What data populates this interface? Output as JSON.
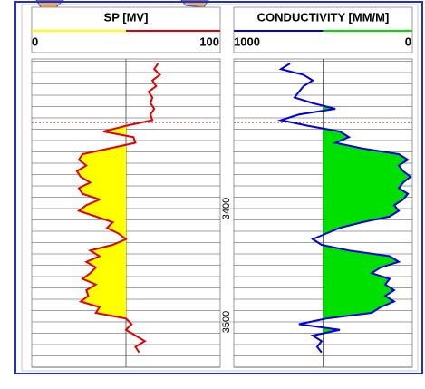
{
  "chart_data": {
    "type": "well_log",
    "depth": [
      3272,
      3277,
      3282,
      3287,
      3292,
      3297,
      3302,
      3307,
      3312,
      3317,
      3322,
      3327,
      3332,
      3337,
      3342,
      3347,
      3352,
      3357,
      3362,
      3367,
      3372,
      3377,
      3382,
      3387,
      3392,
      3397,
      3402,
      3407,
      3412,
      3417,
      3422,
      3427,
      3432,
      3437,
      3442,
      3447,
      3452,
      3457,
      3462,
      3467,
      3472,
      3477,
      3482,
      3487,
      3492,
      3497,
      3502,
      3507,
      3512,
      3517,
      3522,
      3527
    ],
    "ylim": [
      3268,
      3540
    ],
    "yticks": [
      3400,
      3500
    ],
    "minor_grid_interval": 10,
    "horizon_depth": 3324,
    "tracks": [
      {
        "title": "SP [MV]",
        "xlim": [
          0,
          100
        ],
        "xticks": [
          0,
          100
        ],
        "line_color": "#e00000",
        "fill_color": "#ffff00",
        "fill_side": "left",
        "values": [
          67,
          65,
          68,
          64,
          66,
          62,
          64,
          63,
          65,
          63,
          64,
          50,
          38,
          54,
          55,
          41,
          27,
          25,
          29,
          24,
          26,
          31,
          25,
          27,
          36,
          29,
          25,
          34,
          43,
          40,
          46,
          50,
          43,
          31,
          36,
          29,
          34,
          31,
          27,
          34,
          29,
          30,
          26,
          36,
          34,
          50,
          53,
          50,
          55,
          60,
          55,
          57
        ]
      },
      {
        "title": "CONDUCTIVITY [MM/M]",
        "xlim": [
          1000,
          0
        ],
        "xticks": [
          1000,
          0
        ],
        "line_color": "#0000e0",
        "fill_color": "#00e000",
        "fill_side": "right",
        "values": [
          685,
          736,
          609,
          558,
          609,
          635,
          660,
          558,
          431,
          635,
          736,
          584,
          406,
          355,
          431,
          279,
          76,
          25,
          76,
          51,
          10,
          51,
          76,
          25,
          51,
          102,
          76,
          127,
          279,
          406,
          482,
          558,
          508,
          355,
          127,
          76,
          178,
          228,
          127,
          152,
          102,
          152,
          102,
          178,
          228,
          482,
          635,
          406,
          558,
          508,
          533,
          508
        ]
      }
    ]
  }
}
